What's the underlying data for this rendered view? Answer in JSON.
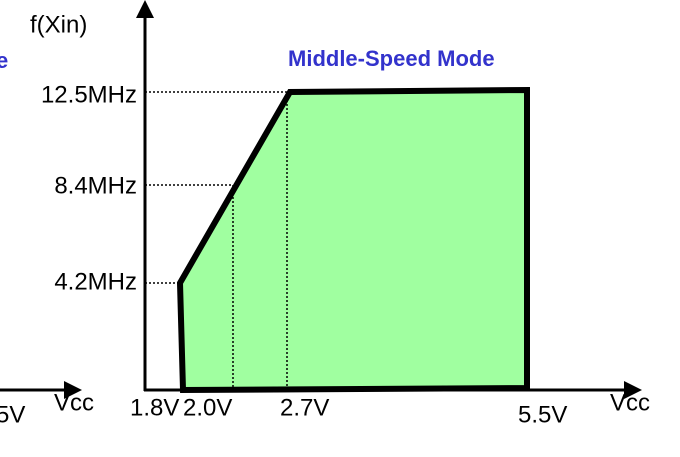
{
  "diagram": {
    "y_axis_label": "f(Xin)",
    "mode_label": "Middle-Speed Mode",
    "frequency_labels": [
      "12.5MHz",
      "8.4MHz",
      "4.2MHz"
    ],
    "voltage_labels": [
      "1.8V",
      "2.0V",
      "2.7V",
      "5.5V"
    ],
    "x_axis_label": "Vcc",
    "left_fragment": {
      "voltage_label": "5V",
      "x_axis_label": "Vcc",
      "title_fragment": "e"
    }
  }
}
